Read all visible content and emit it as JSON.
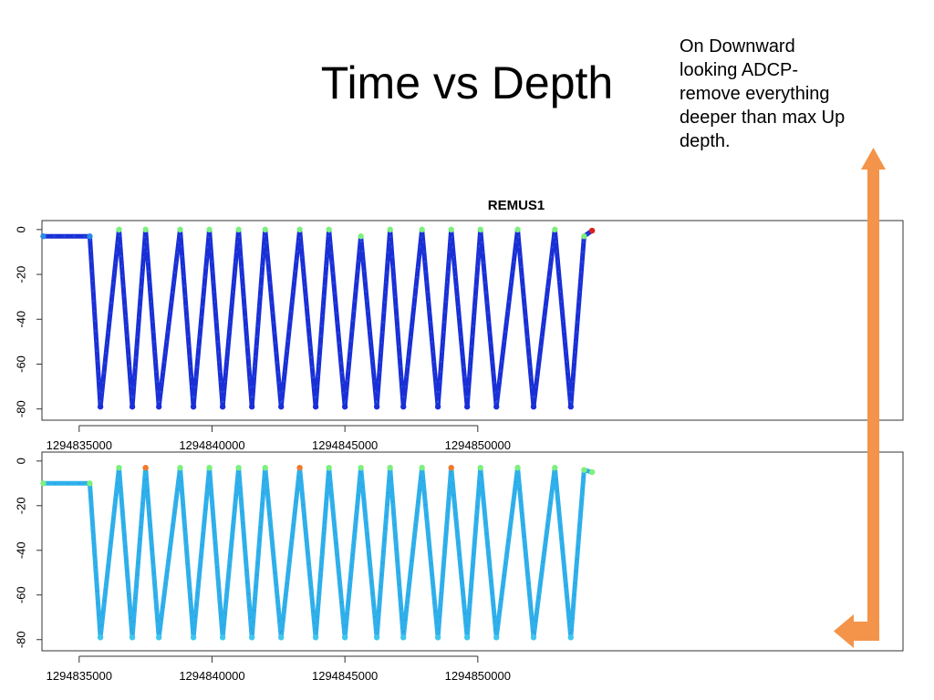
{
  "slide": {
    "title": "Time vs Depth",
    "note_lines": [
      "On Downward",
      "looking ADCP-",
      "remove everything",
      "deeper than max Up",
      "depth."
    ]
  },
  "colors": {
    "deep_blue": "#1a2fd6",
    "mid_blue": "#2a8ae6",
    "cyan": "#3ec6ee",
    "green": "#7cf07c",
    "orange": "#f07a2a",
    "red": "#d82020",
    "arrow": "#f4944a"
  },
  "chart_data": [
    {
      "type": "line",
      "title": "REMUS1",
      "xlabel": "",
      "ylabel": "",
      "xlim": [
        1294833600,
        1294866000
      ],
      "ylim": [
        -85,
        4
      ],
      "x_ticks": [
        1294835000,
        1294840000,
        1294845000,
        1294850000
      ],
      "x_tick_labels": [
        "1294835000",
        "1294840000",
        "1294845000",
        "1294850000"
      ],
      "y_ticks": [
        0,
        -20,
        -40,
        -60,
        -80
      ],
      "y_tick_labels": [
        "0",
        "-20",
        "-40",
        "-60",
        "-80"
      ],
      "grid": false,
      "series": [
        {
          "color": "#1a2fd6",
          "x": [
            1294833650,
            1294835400,
            1294835800,
            1294836500,
            1294837000,
            1294837500,
            1294838000,
            1294838800,
            1294839300,
            1294839900,
            1294840400,
            1294841000,
            1294841500,
            1294842000,
            1294842600,
            1294843300,
            1294843900,
            1294844400,
            1294845000,
            1294845600,
            1294846200,
            1294846700,
            1294847200,
            1294847900,
            1294848500,
            1294849000,
            1294849600,
            1294850100,
            1294850700,
            1294851500,
            1294852100,
            1294852900,
            1294853500,
            1294854000,
            1294854300
          ],
          "y": [
            -3,
            -3,
            -79,
            0,
            -79,
            0,
            -79,
            0,
            -79,
            0,
            -79,
            0,
            -79,
            0,
            -79,
            0,
            -79,
            0,
            -79,
            -3,
            -79,
            0,
            -79,
            0,
            -79,
            0,
            -79,
            0,
            -79,
            0,
            -79,
            0,
            -79,
            -3,
            -0.5
          ]
        }
      ]
    },
    {
      "type": "line",
      "title": "",
      "xlabel": "",
      "ylabel": "",
      "xlim": [
        1294833600,
        1294866000
      ],
      "ylim": [
        -85,
        4
      ],
      "x_ticks": [
        1294835000,
        1294840000,
        1294845000,
        1294850000
      ],
      "x_tick_labels": [
        "1294835000",
        "1294840000",
        "1294845000",
        "1294850000"
      ],
      "y_ticks": [
        0,
        -20,
        -40,
        -60,
        -80
      ],
      "y_tick_labels": [
        "0",
        "-20",
        "-40",
        "-60",
        "-80"
      ],
      "grid": false,
      "series": [
        {
          "color": "#2fb0ea",
          "x": [
            1294833650,
            1294835400,
            1294835800,
            1294836500,
            1294837000,
            1294837500,
            1294838000,
            1294838800,
            1294839300,
            1294839900,
            1294840400,
            1294841000,
            1294841500,
            1294842000,
            1294842600,
            1294843300,
            1294843900,
            1294844400,
            1294845000,
            1294845600,
            1294846200,
            1294846700,
            1294847200,
            1294847900,
            1294848500,
            1294849000,
            1294849600,
            1294850100,
            1294850700,
            1294851500,
            1294852100,
            1294852900,
            1294853500,
            1294854000,
            1294854300
          ],
          "y": [
            -10,
            -10,
            -79,
            -3,
            -79,
            -3,
            -79,
            -3,
            -79,
            -3,
            -79,
            -3,
            -79,
            -3,
            -79,
            -3,
            -79,
            -3,
            -79,
            -3,
            -79,
            -3,
            -79,
            -3,
            -79,
            -3,
            -79,
            -3,
            -79,
            -3,
            -79,
            -3,
            -79,
            -4,
            -5
          ]
        }
      ]
    }
  ]
}
